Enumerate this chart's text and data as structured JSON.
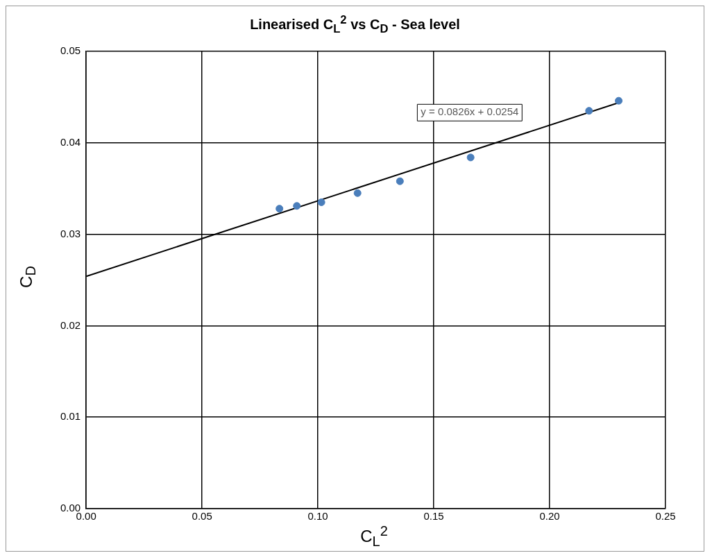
{
  "chart_data": {
    "type": "scatter",
    "title": "Linearised C$_{L}$$^{2}$ vs C$_{D}$ - Sea level",
    "xlabel": "C$_{L}$$^{2}$",
    "ylabel": "C$_{D}$",
    "annotations": [
      "y = 0.0826x + 0.0254"
    ],
    "series": [
      {
        "color": "#4a7ebb",
        "marker": "circle",
        "x": [
          0.0834,
          0.0909,
          0.1015,
          0.1171,
          0.1354,
          0.1659,
          0.217,
          0.2298
        ],
        "values": [
          0.0328,
          0.0331,
          0.0335,
          0.0345,
          0.0358,
          0.0384,
          0.0435,
          0.0446
        ]
      },
      {
        "type": "line",
        "color": "#000000",
        "marker": "none",
        "x": [
          0,
          0.23
        ],
        "values": [
          0.0254,
          0.0444
        ]
      }
    ],
    "xlim": [
      0,
      0.25
    ],
    "xticks": [
      {
        "value": 0,
        "label": "0.00"
      },
      {
        "value": 0.05,
        "label": "0.05"
      },
      {
        "value": 0.1,
        "label": "0.10"
      },
      {
        "value": 0.15,
        "label": "0.15"
      },
      {
        "value": 0.2,
        "label": "0.20"
      },
      {
        "value": 0.25,
        "label": "0.25"
      }
    ],
    "ylim": [
      0,
      0.05
    ],
    "yticks": [
      {
        "value": 0,
        "label": "0.00"
      },
      {
        "value": 0.01,
        "label": "0.01"
      },
      {
        "value": 0.02,
        "label": "0.02"
      },
      {
        "value": 0.03,
        "label": "0.03"
      },
      {
        "value": 0.04,
        "label": "0.04"
      },
      {
        "value": 0.05,
        "label": "0.05"
      }
    ],
    "grid": true
  }
}
